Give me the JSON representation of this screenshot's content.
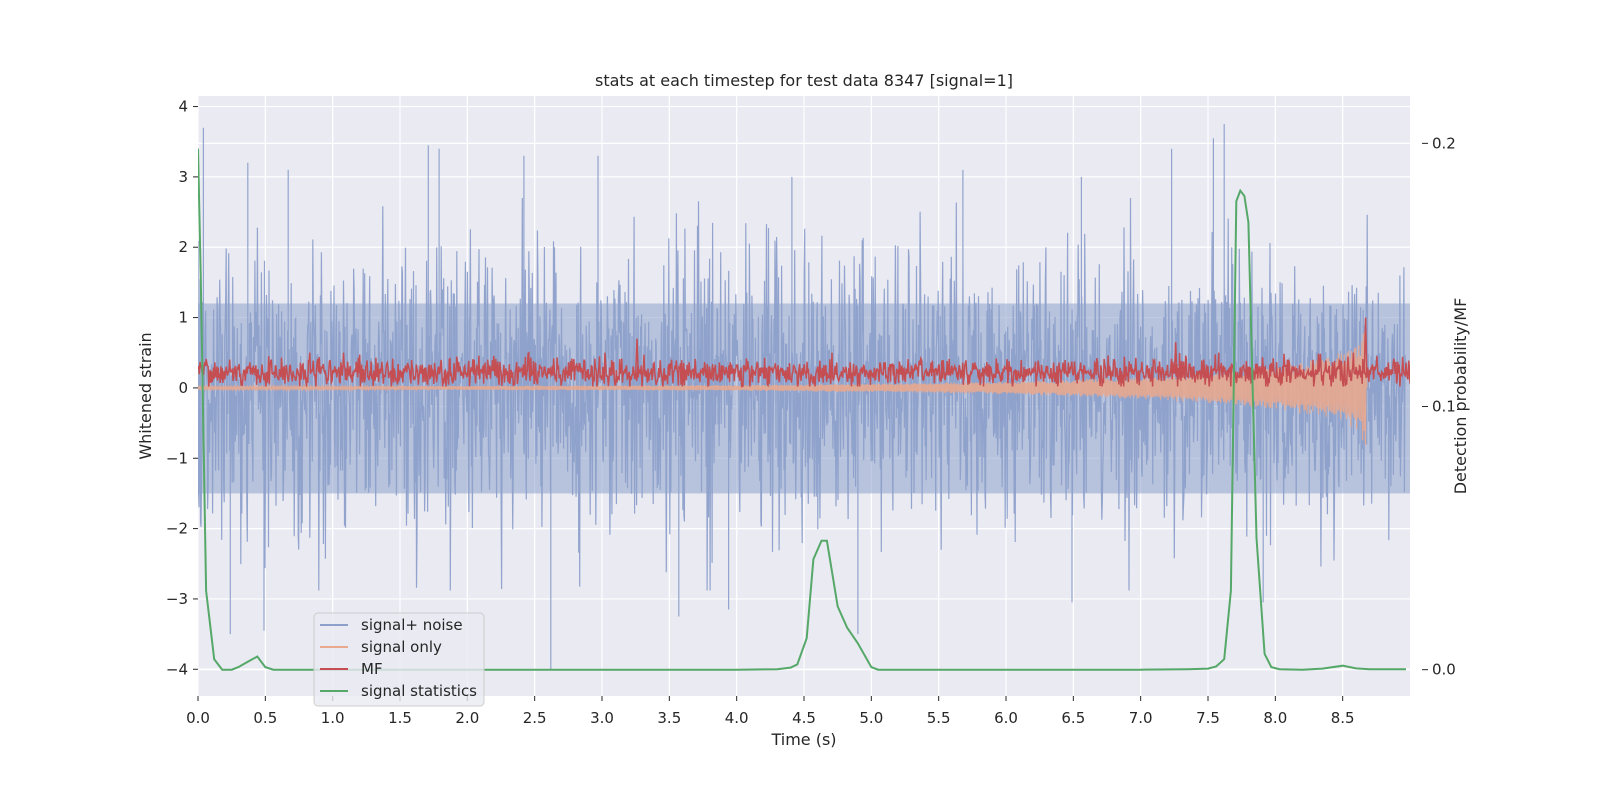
{
  "chart_data": {
    "type": "line",
    "title": "stats at each timestep for test data 8347 [signal=1]",
    "xlabel": "Time (s)",
    "ylabel": "Whitened strain",
    "y2label": "Detection probability/MF",
    "xlim": [
      0,
      9
    ],
    "ylim": [
      -4.38,
      4.15
    ],
    "y2lim": [
      -0.01,
      0.218
    ],
    "xticks": [
      0.0,
      0.5,
      1.0,
      1.5,
      2.0,
      2.5,
      3.0,
      3.5,
      4.0,
      4.5,
      5.0,
      5.5,
      6.0,
      6.5,
      7.0,
      7.5,
      8.0,
      8.5
    ],
    "xtick_labels": [
      "0.0",
      "0.5",
      "1.0",
      "1.5",
      "2.0",
      "2.5",
      "3.0",
      "3.5",
      "4.0",
      "4.5",
      "5.0",
      "5.5",
      "6.0",
      "6.5",
      "7.0",
      "7.5",
      "8.0",
      "8.5"
    ],
    "yticks": [
      -4,
      -3,
      -2,
      -1,
      0,
      1,
      2,
      3,
      4
    ],
    "ytick_labels": [
      "−4",
      "−3",
      "−2",
      "−1",
      "0",
      "1",
      "2",
      "3",
      "4"
    ],
    "y2ticks": [
      0.0,
      0.1,
      0.2
    ],
    "y2tick_labels": [
      "0.0",
      "0.1",
      "0.2"
    ],
    "grid": true,
    "legend_position": "lower-left",
    "series": [
      {
        "name": "signal+ noise",
        "axis": "left",
        "color": "#8da0cb",
        "description": "dense noisy whitened strain, roughly ±2.5 with spikes to ±3.8",
        "envelope_min": -4.0,
        "envelope_max": 3.75,
        "spikes": [
          [
            0.04,
            3.7
          ],
          [
            0.37,
            3.2
          ],
          [
            0.67,
            3.1
          ],
          [
            1.71,
            3.45
          ],
          [
            1.79,
            3.4
          ],
          [
            2.42,
            3.3
          ],
          [
            2.97,
            3.3
          ],
          [
            4.41,
            3.0
          ],
          [
            5.68,
            3.1
          ],
          [
            6.56,
            3.0
          ],
          [
            7.23,
            3.4
          ],
          [
            7.54,
            3.55
          ],
          [
            7.62,
            3.75
          ],
          [
            2.62,
            -4.0
          ],
          [
            0.24,
            -3.5
          ],
          [
            0.49,
            -3.45
          ],
          [
            3.57,
            -3.25
          ],
          [
            3.94,
            -3.15
          ],
          [
            4.9,
            -3.5
          ],
          [
            6.49,
            -3.05
          ],
          [
            7.91,
            -3.05
          ]
        ]
      },
      {
        "name": "signal only",
        "axis": "left",
        "color": "#e8a98f",
        "description": "chirp signal, amplitude grows toward merger near t=8.7s",
        "x": [
          0.0,
          2.0,
          4.0,
          5.0,
          6.0,
          6.5,
          7.0,
          7.5,
          7.8,
          8.0,
          8.2,
          8.4,
          8.55,
          8.62,
          8.67,
          8.68,
          9.0
        ],
        "amplitude": [
          0.02,
          0.03,
          0.04,
          0.06,
          0.09,
          0.12,
          0.16,
          0.22,
          0.27,
          0.32,
          0.38,
          0.45,
          0.55,
          0.68,
          0.95,
          0.0,
          0.0
        ]
      },
      {
        "name": "MF",
        "axis": "left",
        "color": "#c44e52",
        "description": "matched filter output, baseline around 0.2 with band 0 to 0.5, peak near 8.67s",
        "baseline": 0.22,
        "band": [
          0.02,
          0.5
        ],
        "peaks": [
          [
            3.26,
            0.7
          ],
          [
            7.26,
            0.65
          ],
          [
            8.67,
            1.0
          ]
        ]
      },
      {
        "name": "signal statistics",
        "axis": "right",
        "color": "#55a868",
        "x": [
          0.0,
          0.02,
          0.06,
          0.12,
          0.18,
          0.25,
          0.3,
          0.37,
          0.44,
          0.5,
          0.56,
          0.65,
          1.0,
          2.0,
          3.0,
          4.0,
          4.3,
          4.4,
          4.45,
          4.52,
          4.57,
          4.63,
          4.67,
          4.75,
          4.82,
          4.9,
          5.0,
          5.05,
          5.15,
          6.0,
          7.0,
          7.35,
          7.5,
          7.56,
          7.62,
          7.67,
          7.71,
          7.74,
          7.77,
          7.8,
          7.86,
          7.92,
          7.97,
          8.03,
          8.2,
          8.35,
          8.5,
          8.6,
          8.7,
          8.8,
          8.97
        ],
        "values": [
          0.198,
          0.15,
          0.03,
          0.004,
          0.0,
          0.0,
          0.001,
          0.003,
          0.005,
          0.001,
          0.0,
          0.0,
          0.0,
          0.0,
          0.0,
          0.0,
          0.0002,
          0.0008,
          0.002,
          0.012,
          0.042,
          0.049,
          0.049,
          0.024,
          0.016,
          0.01,
          0.001,
          0.0,
          0.0,
          0.0,
          0.0,
          0.0002,
          0.0004,
          0.0012,
          0.004,
          0.03,
          0.178,
          0.182,
          0.18,
          0.17,
          0.05,
          0.006,
          0.001,
          0.0002,
          0.0,
          0.0004,
          0.0015,
          0.0005,
          0.0002,
          0.0002,
          0.0002
        ]
      }
    ]
  }
}
